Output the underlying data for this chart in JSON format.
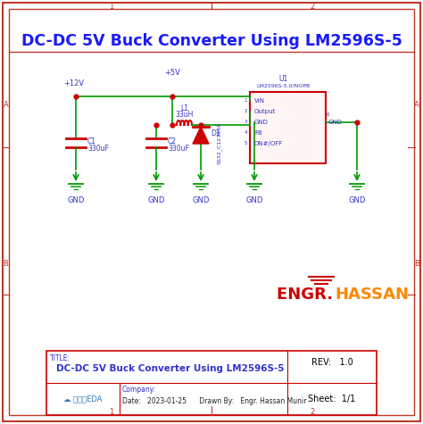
{
  "title": "DC-DC 5V Buck Converter Using LM2596S-5",
  "bg_color": "#ffffff",
  "border_color": "#c0392b",
  "title_color": "#1a1aff",
  "wire_green": "#009900",
  "wire_red": "#cc0000",
  "comp_red": "#cc0000",
  "text_blue": "#3333cc",
  "engr_red": "#cc0000",
  "engr_orange": "#ff8800",
  "footer_title": "DC-DC 5V Buck Converter Using LM2596S-5",
  "logo_text": "嘉立创EDA",
  "date_line": "Date:   2023-01-25      Drawn By:   Engr. Hassan Munir",
  "light_pink": "#fff5f5"
}
